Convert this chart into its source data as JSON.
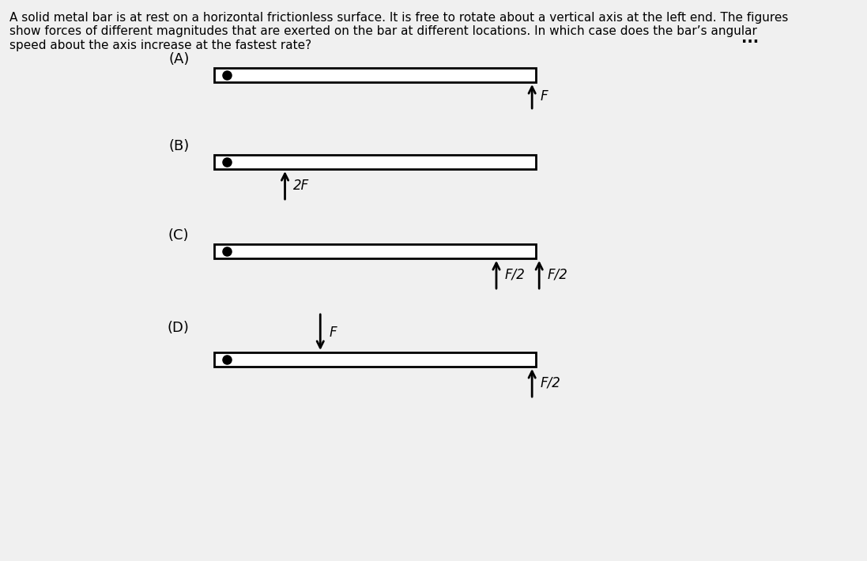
{
  "bg_color": "#f0f0f0",
  "text_color": "#000000",
  "question_text": "A solid metal bar is at rest on a horizontal frictionless surface. It is free to rotate about a vertical axis at the left end. The figures\nshow forces of different magnitudes that are exerted on the bar at different locations. In which case does the bar’s angular\nspeed about the axis increase at the fastest rate?",
  "cases": [
    "(A)",
    "(B)",
    "(C)",
    "(D)"
  ],
  "bar_color": "white",
  "bar_edge_color": "black",
  "dot_color": "black",
  "arrow_color": "black"
}
